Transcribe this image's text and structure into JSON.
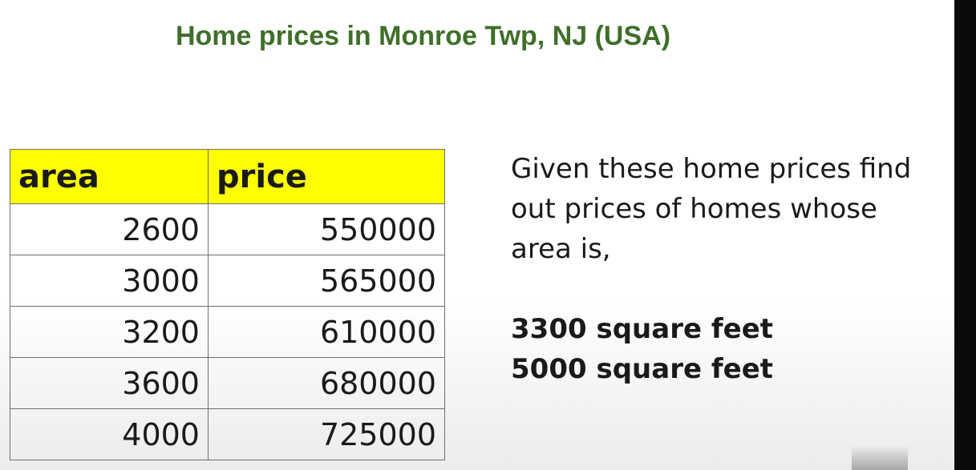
{
  "title": "Home prices in Monroe Twp, NJ (USA)",
  "table": {
    "columns": [
      "area",
      "price"
    ],
    "rows": [
      {
        "area": "2600",
        "price": "550000"
      },
      {
        "area": "3000",
        "price": "565000"
      },
      {
        "area": "3200",
        "price": "610000"
      },
      {
        "area": "3600",
        "price": "680000"
      },
      {
        "area": "4000",
        "price": "725000"
      }
    ]
  },
  "description": "Given these home prices find out prices of homes whose area is,",
  "queries": [
    "3300 square feet",
    "5000 square feet"
  ],
  "colors": {
    "title": "#3f6f2a",
    "header_fill": "#ffff00",
    "grid": "#6f6f6f"
  }
}
